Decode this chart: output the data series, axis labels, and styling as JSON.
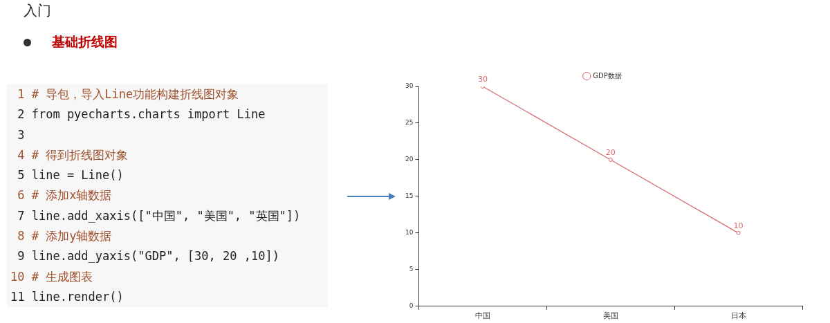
{
  "chart_data": [
    {
      "type": "other",
      "title": "入门",
      "subtitle": "基础折线图",
      "annotations": [
        "1 # 导包，导入Line功能构建折线图对象",
        "2 from pyecharts.charts import Line",
        "3",
        "4 # 得到折线图对象",
        "5 line = Line()",
        "6 # 添加x轴数据",
        "7 line.add_xaxis([\"中国\", \"美国\", \"英国\"])",
        "8 # 添加y轴数据",
        "9 line.add_yaxis(\"GDP\", [30, 20 ,10])",
        "10 # 生成图表",
        "11 line.render()"
      ]
    },
    {
      "type": "line",
      "categories": [
        "中国",
        "美国",
        "日本"
      ],
      "series": [
        {
          "name": "GDP数据",
          "color": "#d9686a",
          "values": [
            30,
            20,
            10
          ]
        }
      ],
      "ylim": [
        0,
        30
      ],
      "yticks": [
        0,
        5,
        10,
        15,
        20,
        25,
        30
      ],
      "grid": false,
      "legend": "top",
      "marker": "circle",
      "line_style": "solid",
      "data_labels": true
    }
  ]
}
